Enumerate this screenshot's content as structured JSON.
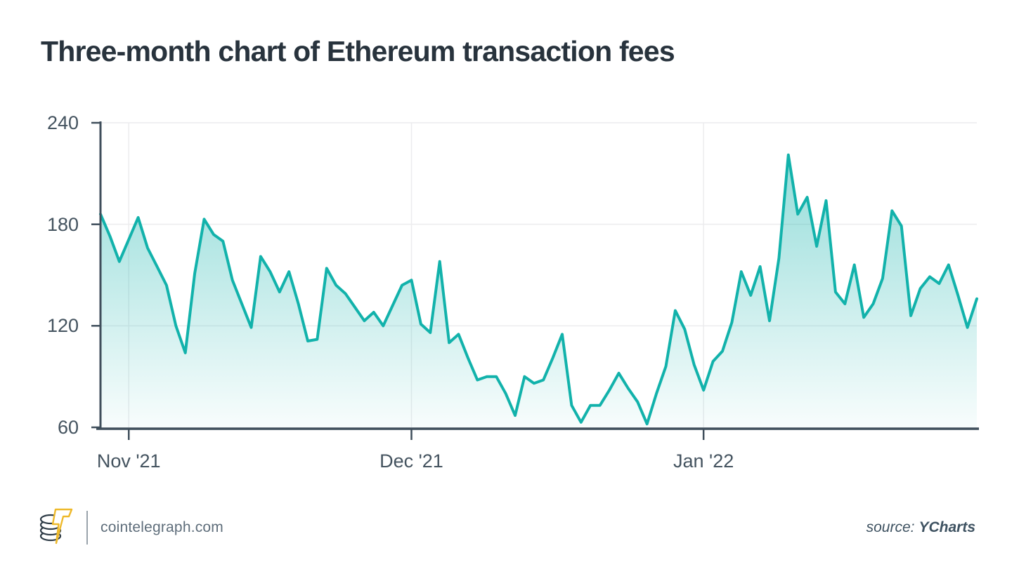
{
  "title": "Three-month chart of Ethereum transaction fees",
  "footer": {
    "brand": "cointelegraph.com",
    "source_label": "source:",
    "source_value": "YCharts"
  },
  "colors": {
    "line": "#12b2ab",
    "axis": "#3f4e5b",
    "grid": "#ececee",
    "tick_text": "#44535f",
    "title_text": "#28333d",
    "brand_text": "#5f6e7b",
    "source_text": "#3e5261",
    "logo_outline": "#2e3b46",
    "logo_bolt": "#eeb92b"
  },
  "chart_data": {
    "type": "area",
    "title": "Three-month chart of Ethereum transaction fees",
    "x_note": "daily values, late Oct 2021 through late Jan 2022",
    "ylim": [
      60,
      240
    ],
    "y_ticks": [
      60,
      120,
      180,
      240
    ],
    "x_ticks": [
      {
        "label": "Nov '21",
        "index": 3
      },
      {
        "label": "Dec '21",
        "index": 33
      },
      {
        "label": "Jan '22",
        "index": 64
      }
    ],
    "grid": true,
    "legend": false,
    "values": [
      186,
      173,
      158,
      171,
      184,
      166,
      155,
      144,
      120,
      104,
      151,
      183,
      174,
      170,
      147,
      133,
      119,
      161,
      152,
      140,
      152,
      133,
      111,
      112,
      154,
      144,
      139,
      131,
      123,
      128,
      120,
      132,
      144,
      147,
      121,
      116,
      158,
      110,
      115,
      101,
      88,
      90,
      90,
      80,
      67,
      90,
      86,
      88,
      101,
      115,
      73,
      63,
      73,
      73,
      82,
      92,
      83,
      75,
      62,
      80,
      96,
      129,
      118,
      97,
      82,
      99,
      105,
      122,
      152,
      138,
      155,
      123,
      160,
      221,
      186,
      196,
      167,
      194,
      140,
      133,
      156,
      125,
      133,
      148,
      188,
      179,
      126,
      142,
      149,
      145,
      156,
      138,
      119,
      136
    ]
  }
}
